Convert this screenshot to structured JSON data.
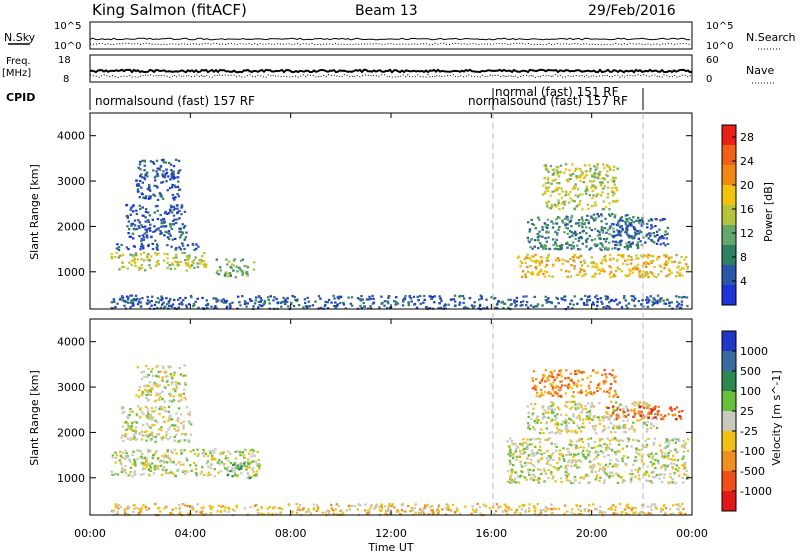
{
  "header": {
    "station": "King Salmon (fitACF)",
    "beam": "Beam 13",
    "date": "29/Feb/2016"
  },
  "top_labels": {
    "nsky": "N.Sky",
    "nsearch": "N.Search",
    "nsky_ticks": [
      "10^5",
      "10^0"
    ],
    "nsearch_ticks": [
      "10^5",
      "10^0"
    ],
    "freq": "Freq.",
    "mhz": "[MHz]",
    "freq_ticks": [
      "18",
      "8"
    ],
    "nave": "Nave",
    "nave_ticks": [
      "60",
      "0"
    ],
    "cpid": "CPID",
    "cpid_1": "normalsound (fast) 157 RF",
    "cpid_2": "normal (fast) 151 RF",
    "cpid_3": "normalsound (fast) 157 RF"
  },
  "x_axis": {
    "label": "Time UT",
    "ticks": [
      "00:00",
      "04:00",
      "08:00",
      "12:00",
      "16:00",
      "20:00",
      "00:00"
    ]
  },
  "colors": {
    "power": [
      "#1e32d8",
      "#2b55a8",
      "#2f7f62",
      "#63a86a",
      "#b6c23a",
      "#f2c20c",
      "#f08a10",
      "#f06018",
      "#e82018"
    ],
    "velocity": [
      "#2038c8",
      "#3a6aa0",
      "#2c8850",
      "#66c03a",
      "#c8c8bc",
      "#f0c014",
      "#f09020",
      "#f05018",
      "#e01818"
    ]
  },
  "chart_data": [
    {
      "type": "heatmap",
      "name": "power",
      "xlabel": "Time UT",
      "ylabel": "Slant Range [km]",
      "y_ticks": [
        "1000",
        "2000",
        "3000",
        "4000"
      ],
      "ylim": [
        180,
        4500
      ],
      "xlim": [
        0,
        24
      ],
      "colorbar_label": "Power [dB]",
      "colorbar_ticks": [
        "4",
        "8",
        "12",
        "16",
        "20",
        "24",
        "28"
      ],
      "colorbar_range": [
        0,
        30
      ],
      "regions": [
        {
          "t0": 0.8,
          "t1": 4.6,
          "r0": 1050,
          "r1": 1450,
          "color": 4
        },
        {
          "t0": 1.0,
          "t1": 4.4,
          "r0": 1500,
          "r1": 1650,
          "color": 1
        },
        {
          "t0": 1.4,
          "t1": 3.8,
          "r0": 1700,
          "r1": 2500,
          "color": 1
        },
        {
          "t0": 1.8,
          "t1": 3.6,
          "r0": 2600,
          "r1": 3500,
          "color": 1
        },
        {
          "t0": 5.0,
          "t1": 6.5,
          "r0": 900,
          "r1": 1300,
          "color": 3
        },
        {
          "t0": 17.0,
          "t1": 23.8,
          "r0": 900,
          "r1": 1400,
          "color": 5
        },
        {
          "t0": 17.4,
          "t1": 22.0,
          "r0": 1500,
          "r1": 2300,
          "color": 2
        },
        {
          "t0": 18.0,
          "t1": 21.0,
          "r0": 2400,
          "r1": 3400,
          "color": 4
        },
        {
          "t0": 20.8,
          "t1": 23.0,
          "r0": 1600,
          "r1": 2200,
          "color": 1
        },
        {
          "t0": 0.8,
          "t1": 23.8,
          "r0": 200,
          "r1": 500,
          "color": 1
        }
      ]
    },
    {
      "type": "heatmap",
      "name": "velocity",
      "xlabel": "Time UT",
      "ylabel": "Slant Range [km]",
      "y_ticks": [
        "1000",
        "2000",
        "3000",
        "4000"
      ],
      "ylim": [
        180,
        4500
      ],
      "xlim": [
        0,
        24
      ],
      "colorbar_label": "Velocity [m s^-1]",
      "colorbar_ticks": [
        "1000",
        "500",
        "100",
        "25",
        "-25",
        "-100",
        "-500",
        "-1000"
      ],
      "regions": [
        {
          "t0": 0.8,
          "t1": 6.8,
          "r0": 1050,
          "r1": 1650,
          "color": 4
        },
        {
          "t0": 1.2,
          "t1": 4.0,
          "r0": 1800,
          "r1": 2600,
          "color": 4
        },
        {
          "t0": 1.8,
          "t1": 3.8,
          "r0": 2700,
          "r1": 3500,
          "color": 4
        },
        {
          "t0": 5.4,
          "t1": 6.6,
          "r0": 1000,
          "r1": 1350,
          "color": 3
        },
        {
          "t0": 16.6,
          "t1": 23.8,
          "r0": 900,
          "r1": 1900,
          "color": 4
        },
        {
          "t0": 17.4,
          "t1": 22.6,
          "r0": 2000,
          "r1": 2700,
          "color": 4
        },
        {
          "t0": 17.6,
          "t1": 21.0,
          "r0": 2800,
          "r1": 3400,
          "color": 6
        },
        {
          "t0": 20.6,
          "t1": 23.6,
          "r0": 2300,
          "r1": 2600,
          "color": 7
        },
        {
          "t0": 0.8,
          "t1": 23.8,
          "r0": 200,
          "r1": 450,
          "color": 5
        }
      ]
    }
  ]
}
